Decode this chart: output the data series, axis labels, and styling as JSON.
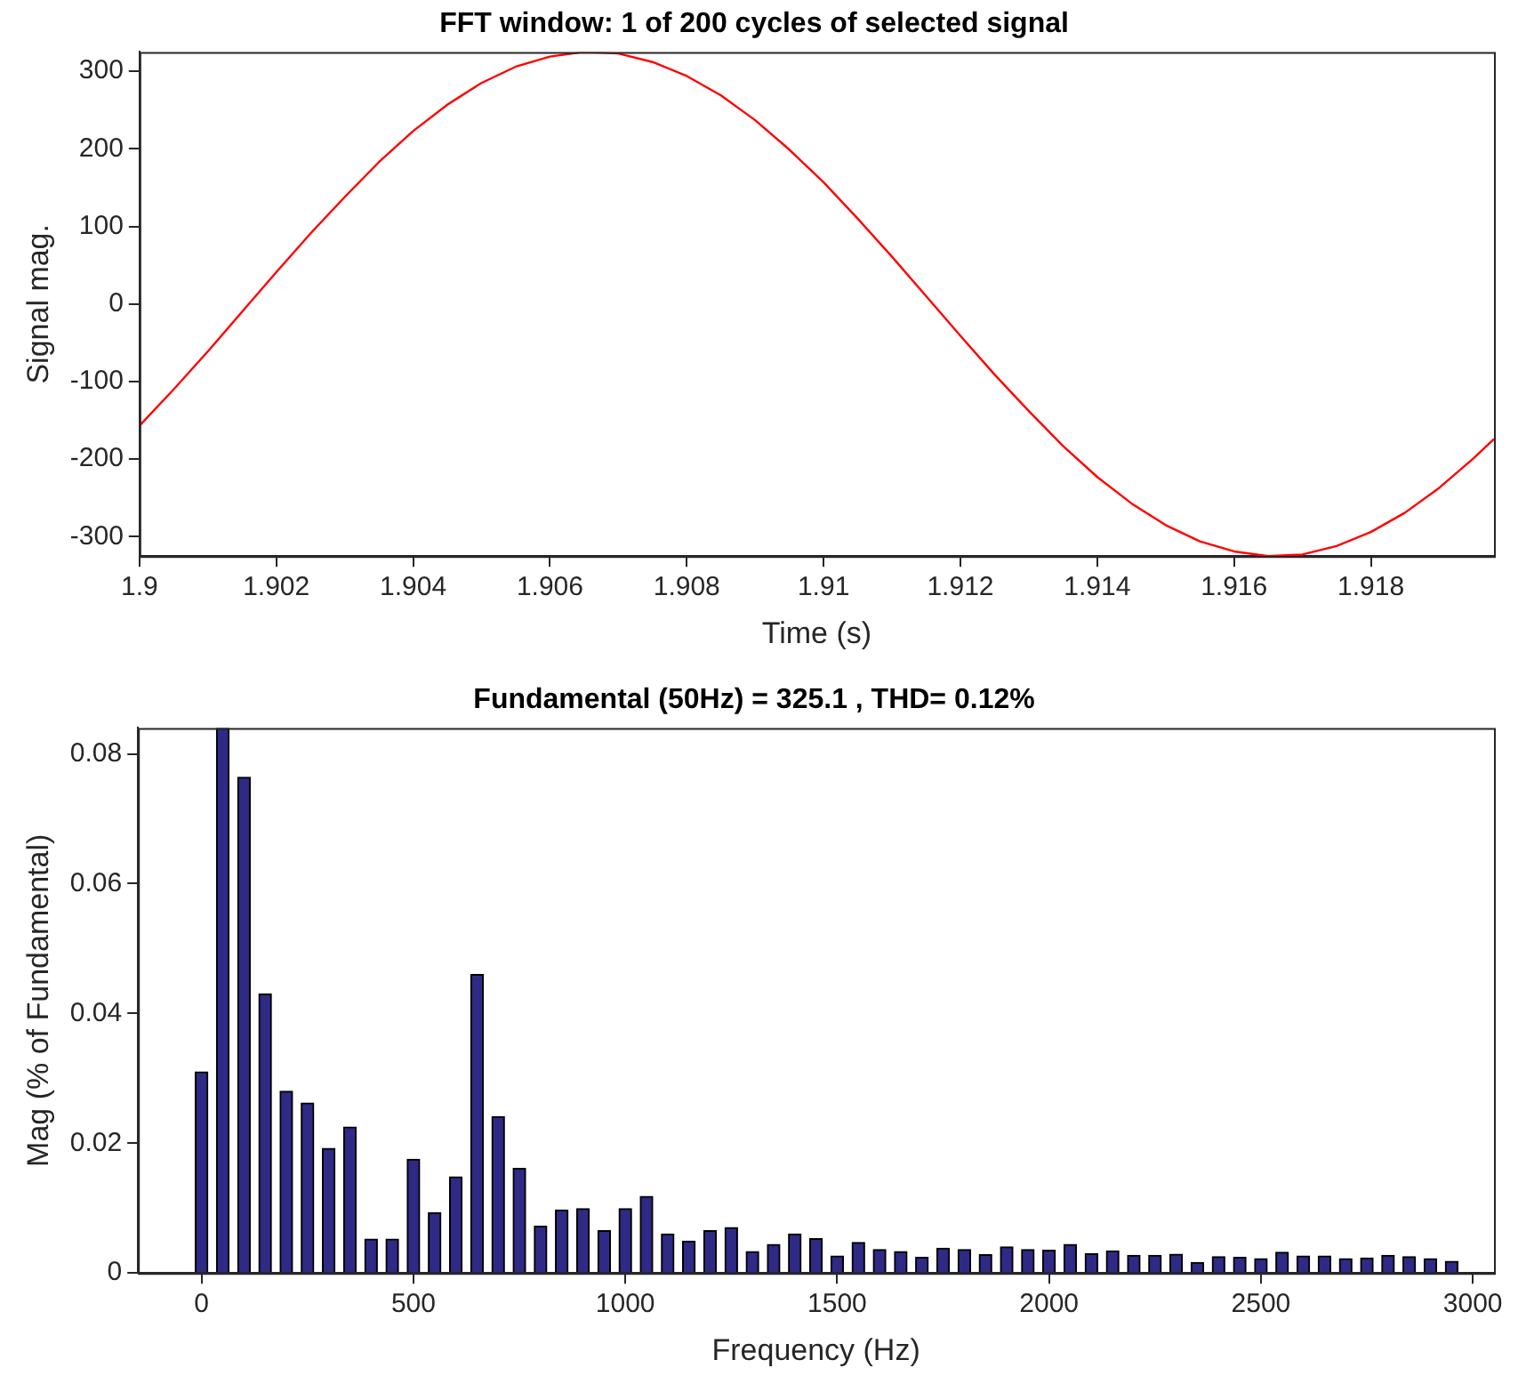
{
  "chart_data": [
    {
      "type": "line",
      "title": "FFT window: 1 of 200 cycles of selected signal",
      "xlabel": "Time (s)",
      "ylabel": "Signal mag.",
      "x": [
        1.9,
        1.9005,
        1.901,
        1.9015,
        1.902,
        1.9025,
        1.903,
        1.9035,
        1.904,
        1.9045,
        1.905,
        1.9055,
        1.906,
        1.9065,
        1.907,
        1.9075,
        1.908,
        1.9085,
        1.909,
        1.9095,
        1.91,
        1.9105,
        1.911,
        1.9115,
        1.912,
        1.9125,
        1.913,
        1.9135,
        1.914,
        1.9145,
        1.915,
        1.9155,
        1.916,
        1.9165,
        1.917,
        1.9175,
        1.918,
        1.9185,
        1.919,
        1.9195,
        1.9198
      ],
      "series": [
        {
          "color": "#ff0000",
          "values": [
            -157,
            -110,
            -61,
            -10,
            41,
            91,
            138,
            183,
            223,
            257,
            285,
            306,
            319,
            325,
            323,
            312,
            294,
            269,
            237,
            199,
            157,
            110,
            61,
            10,
            -41,
            -91,
            -138,
            -183,
            -223,
            -257,
            -285,
            -306,
            -319,
            -325,
            -323,
            -312,
            -294,
            -269,
            -237,
            -199,
            -174
          ]
        }
      ],
      "xlim": [
        1.9,
        1.9198
      ],
      "xticks": [
        1.9,
        1.902,
        1.904,
        1.906,
        1.908,
        1.91,
        1.912,
        1.914,
        1.916,
        1.918
      ],
      "ylim": [
        -325,
        325
      ],
      "yticks": [
        -300,
        -200,
        -100,
        0,
        100,
        200,
        300
      ],
      "grid": false,
      "legend": false,
      "marker": "none",
      "line_style": "solid"
    },
    {
      "type": "bar",
      "title": "Fundamental (50Hz) = 325.1 , THD= 0.12%",
      "xlabel": "Frequency (Hz)",
      "ylabel": "Mag (% of Fundamental)",
      "x": [
        0,
        50,
        100,
        150,
        200,
        250,
        300,
        350,
        400,
        450,
        500,
        550,
        600,
        650,
        700,
        750,
        800,
        850,
        900,
        950,
        1000,
        1050,
        1100,
        1150,
        1200,
        1250,
        1300,
        1350,
        1400,
        1450,
        1500,
        1550,
        1600,
        1650,
        1700,
        1750,
        1800,
        1850,
        1900,
        1950,
        2000,
        2050,
        2100,
        2150,
        2200,
        2250,
        2300,
        2350,
        2400,
        2450,
        2500,
        2550,
        2600,
        2650,
        2700,
        2750,
        2800,
        2850,
        2900,
        2950
      ],
      "series": [
        {
          "color": "#2e2a85",
          "values": [
            0.031,
            0.084,
            0.0764,
            0.043,
            0.028,
            0.0262,
            0.0192,
            0.0225,
            0.0052,
            0.0052,
            0.0175,
            0.0093,
            0.0148,
            0.046,
            0.0241,
            0.0161,
            0.0072,
            0.0097,
            0.0099,
            0.0065,
            0.0099,
            0.0118,
            0.006,
            0.0049,
            0.0065,
            0.007,
            0.0033,
            0.0044,
            0.006,
            0.0053,
            0.0026,
            0.0047,
            0.0036,
            0.0033,
            0.0024,
            0.0038,
            0.0036,
            0.0028,
            0.004,
            0.0036,
            0.0035,
            0.0044,
            0.003,
            0.0034,
            0.0027,
            0.0027,
            0.0029,
            0.0016,
            0.0025,
            0.0024,
            0.0022,
            0.0032,
            0.0026,
            0.0026,
            0.0022,
            0.0023,
            0.0027,
            0.0025,
            0.0022,
            0.0018
          ]
        }
      ],
      "xlim": [
        -150,
        3050
      ],
      "xticks": [
        0,
        500,
        1000,
        1500,
        2000,
        2500,
        3000
      ],
      "ylim": [
        0,
        0.084
      ],
      "yticks": [
        0,
        0.02,
        0.04,
        0.06,
        0.08
      ],
      "grid": false,
      "legend": false
    }
  ]
}
